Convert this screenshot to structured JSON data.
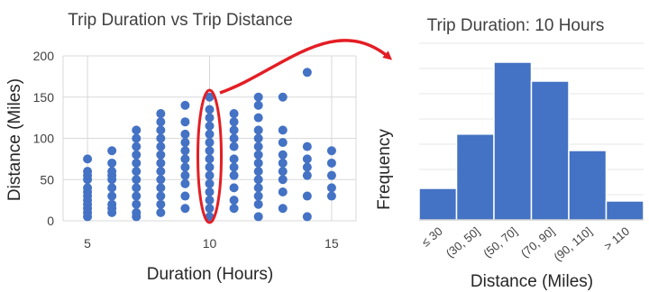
{
  "colors": {
    "points": "#4472C4",
    "bars": "#4472C4",
    "bar_edge": "#ffffff",
    "grid": "#d9d9d9",
    "highlight": "#e31e24"
  },
  "chart_data": [
    {
      "type": "scatter",
      "title": "Trip Duration vs Trip Distance",
      "xlabel": "Duration (Hours)",
      "ylabel": "Distance (Miles)",
      "xlim": [
        4,
        16
      ],
      "ylim": [
        0,
        200
      ],
      "xticks": [
        5,
        10,
        15
      ],
      "yticks": [
        0,
        50,
        100,
        150,
        200
      ],
      "grid": true,
      "series": [
        {
          "points": [
            [
              5,
              5
            ],
            [
              5,
              10
            ],
            [
              5,
              15
            ],
            [
              5,
              20
            ],
            [
              5,
              25
            ],
            [
              5,
              30
            ],
            [
              5,
              35
            ],
            [
              5,
              40
            ],
            [
              5,
              50
            ],
            [
              5,
              55
            ],
            [
              5,
              60
            ],
            [
              5,
              75
            ],
            [
              6,
              10
            ],
            [
              6,
              15
            ],
            [
              6,
              20
            ],
            [
              6,
              30
            ],
            [
              6,
              40
            ],
            [
              6,
              50
            ],
            [
              6,
              55
            ],
            [
              6,
              60
            ],
            [
              6,
              70
            ],
            [
              6,
              85
            ],
            [
              7,
              5
            ],
            [
              7,
              10
            ],
            [
              7,
              20
            ],
            [
              7,
              30
            ],
            [
              7,
              40
            ],
            [
              7,
              50
            ],
            [
              7,
              60
            ],
            [
              7,
              70
            ],
            [
              7,
              80
            ],
            [
              7,
              90
            ],
            [
              7,
              100
            ],
            [
              7,
              110
            ],
            [
              8,
              10
            ],
            [
              8,
              20
            ],
            [
              8,
              30
            ],
            [
              8,
              40
            ],
            [
              8,
              50
            ],
            [
              8,
              60
            ],
            [
              8,
              70
            ],
            [
              8,
              80
            ],
            [
              8,
              90
            ],
            [
              8,
              100
            ],
            [
              8,
              110
            ],
            [
              8,
              120
            ],
            [
              8,
              130
            ],
            [
              9,
              15
            ],
            [
              9,
              30
            ],
            [
              9,
              45
            ],
            [
              9,
              55
            ],
            [
              9,
              65
            ],
            [
              9,
              75
            ],
            [
              9,
              85
            ],
            [
              9,
              95
            ],
            [
              9,
              105
            ],
            [
              9,
              120
            ],
            [
              9,
              140
            ],
            [
              10,
              5
            ],
            [
              10,
              15
            ],
            [
              10,
              25
            ],
            [
              10,
              35
            ],
            [
              10,
              45
            ],
            [
              10,
              55
            ],
            [
              10,
              65
            ],
            [
              10,
              75
            ],
            [
              10,
              85
            ],
            [
              10,
              95
            ],
            [
              10,
              105
            ],
            [
              10,
              115
            ],
            [
              10,
              125
            ],
            [
              10,
              135
            ],
            [
              10,
              150
            ],
            [
              11,
              15
            ],
            [
              11,
              25
            ],
            [
              11,
              40
            ],
            [
              11,
              55
            ],
            [
              11,
              65
            ],
            [
              11,
              75
            ],
            [
              11,
              90
            ],
            [
              11,
              100
            ],
            [
              11,
              110
            ],
            [
              11,
              120
            ],
            [
              11,
              130
            ],
            [
              12,
              5
            ],
            [
              12,
              20
            ],
            [
              12,
              30
            ],
            [
              12,
              40
            ],
            [
              12,
              50
            ],
            [
              12,
              60
            ],
            [
              12,
              70
            ],
            [
              12,
              80
            ],
            [
              12,
              90
            ],
            [
              12,
              100
            ],
            [
              12,
              110
            ],
            [
              12,
              125
            ],
            [
              12,
              140
            ],
            [
              12,
              150
            ],
            [
              13,
              15
            ],
            [
              13,
              35
            ],
            [
              13,
              50
            ],
            [
              13,
              60
            ],
            [
              13,
              70
            ],
            [
              13,
              80
            ],
            [
              13,
              95
            ],
            [
              13,
              110
            ],
            [
              13,
              150
            ],
            [
              14,
              5
            ],
            [
              14,
              30
            ],
            [
              14,
              55
            ],
            [
              14,
              65
            ],
            [
              14,
              75
            ],
            [
              14,
              90
            ],
            [
              14,
              180
            ],
            [
              15,
              30
            ],
            [
              15,
              40
            ],
            [
              15,
              55
            ],
            [
              15,
              70
            ],
            [
              15,
              85
            ]
          ]
        }
      ],
      "highlight": {
        "x": 10
      }
    },
    {
      "type": "bar",
      "title": "Trip Duration: 10 Hours",
      "xlabel": "Distance (Miles)",
      "ylabel": "Frequency",
      "categories": [
        "≤ 30",
        "(30, 50]",
        "(50, 70]",
        "(70, 90]",
        "(90, 110]",
        "> 110"
      ],
      "values": [
        2.5,
        6.8,
        12.5,
        11.0,
        5.5,
        1.5
      ],
      "ylim": [
        0,
        14
      ],
      "grid": true
    }
  ]
}
